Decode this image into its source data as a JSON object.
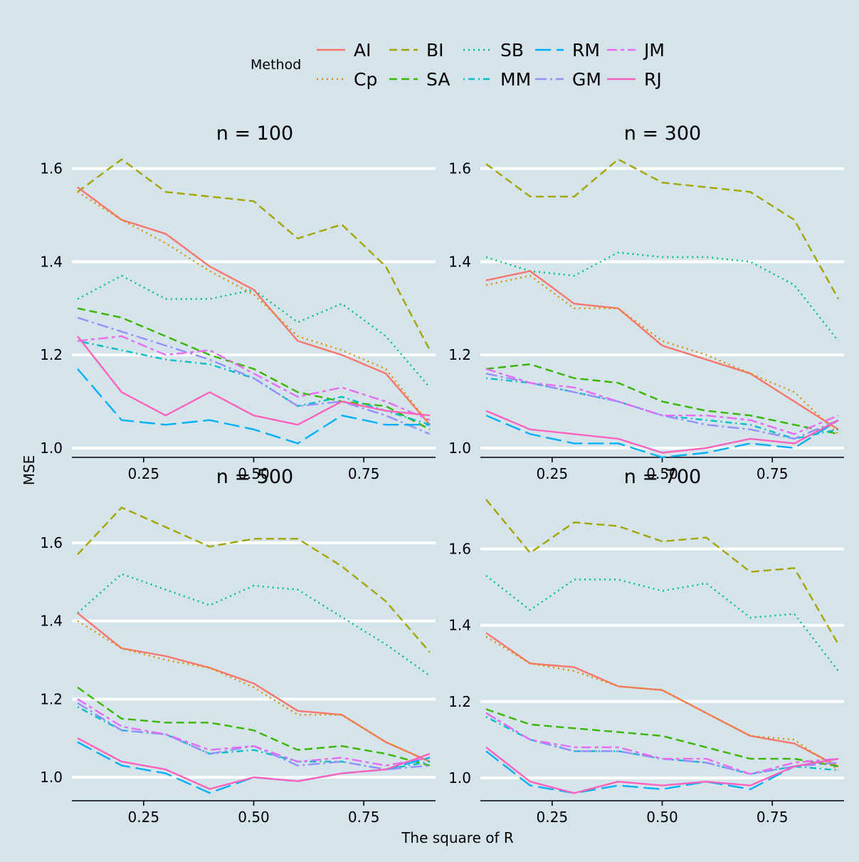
{
  "chart_data": {
    "type": "line",
    "facet_label_prefix": "n = ",
    "xlabel": "The square of R",
    "ylabel": "MSE",
    "legend_title": "Method",
    "legend_position": "top",
    "grid": "horizontal major gridlines only",
    "x": [
      0.1,
      0.2,
      0.3,
      0.4,
      0.5,
      0.6,
      0.7,
      0.8,
      0.9
    ],
    "x_ticks": [
      0.25,
      0.5,
      0.75
    ],
    "x_tick_labels": [
      "0.25",
      "0.50",
      "0.75"
    ],
    "xlim": [
      0.1,
      0.9
    ],
    "legend": [
      {
        "name": "AI",
        "color": "#F8766D",
        "dash": "solid"
      },
      {
        "name": "BI",
        "color": "#A3A500",
        "dash": "dashed"
      },
      {
        "name": "SB",
        "color": "#00BF7D",
        "dash": "dotted"
      },
      {
        "name": "RM",
        "color": "#00B0F6",
        "dash": "longdash"
      },
      {
        "name": "JM",
        "color": "#E76BF3",
        "dash": "twodash"
      },
      {
        "name": "Cp",
        "color": "#D89000",
        "dash": "dotted"
      },
      {
        "name": "SA",
        "color": "#39B600",
        "dash": "dashed"
      },
      {
        "name": "MM",
        "color": "#00BFC4",
        "dash": "dotdash"
      },
      {
        "name": "GM",
        "color": "#9590FF",
        "dash": "dashdot"
      },
      {
        "name": "RJ",
        "color": "#FF62BC",
        "dash": "solid"
      }
    ],
    "panels": [
      {
        "n": "100",
        "y_ticks": [
          1.0,
          1.2,
          1.4,
          1.6
        ],
        "y_tick_labels": [
          "1.0",
          "1.2",
          "1.4",
          "1.6"
        ],
        "series": [
          {
            "name": "AI",
            "values": [
              1.56,
              1.49,
              1.46,
              1.39,
              1.34,
              1.23,
              1.2,
              1.16,
              1.05
            ]
          },
          {
            "name": "Cp",
            "values": [
              1.55,
              1.49,
              1.44,
              1.38,
              1.33,
              1.24,
              1.21,
              1.17,
              1.05
            ]
          },
          {
            "name": "BI",
            "values": [
              1.55,
              1.62,
              1.55,
              1.54,
              1.53,
              1.45,
              1.48,
              1.39,
              1.21
            ]
          },
          {
            "name": "SB",
            "values": [
              1.32,
              1.37,
              1.32,
              1.32,
              1.34,
              1.27,
              1.31,
              1.24,
              1.13
            ]
          },
          {
            "name": "SA",
            "values": [
              1.3,
              1.28,
              1.24,
              1.2,
              1.17,
              1.12,
              1.1,
              1.09,
              1.04
            ]
          },
          {
            "name": "MM",
            "values": [
              1.23,
              1.21,
              1.19,
              1.18,
              1.15,
              1.09,
              1.11,
              1.08,
              1.05
            ]
          },
          {
            "name": "GM",
            "values": [
              1.28,
              1.25,
              1.22,
              1.19,
              1.15,
              1.09,
              1.1,
              1.07,
              1.03
            ]
          },
          {
            "name": "JM",
            "values": [
              1.23,
              1.24,
              1.2,
              1.21,
              1.16,
              1.11,
              1.13,
              1.1,
              1.06
            ]
          },
          {
            "name": "RM",
            "values": [
              1.17,
              1.06,
              1.05,
              1.06,
              1.04,
              1.01,
              1.07,
              1.05,
              1.05
            ]
          },
          {
            "name": "RJ",
            "values": [
              1.24,
              1.12,
              1.07,
              1.12,
              1.07,
              1.05,
              1.1,
              1.08,
              1.07
            ]
          }
        ]
      },
      {
        "n": "300",
        "y_ticks": [
          1.0,
          1.2,
          1.4,
          1.6
        ],
        "y_tick_labels": [
          "1.0",
          "1.2",
          "1.4",
          "1.6"
        ],
        "series": [
          {
            "name": "AI",
            "values": [
              1.36,
              1.38,
              1.31,
              1.3,
              1.22,
              1.19,
              1.16,
              1.1,
              1.04
            ]
          },
          {
            "name": "Cp",
            "values": [
              1.35,
              1.37,
              1.3,
              1.3,
              1.23,
              1.2,
              1.16,
              1.12,
              1.03
            ]
          },
          {
            "name": "BI",
            "values": [
              1.61,
              1.54,
              1.54,
              1.62,
              1.57,
              1.56,
              1.55,
              1.49,
              1.32
            ]
          },
          {
            "name": "SB",
            "values": [
              1.41,
              1.38,
              1.37,
              1.42,
              1.41,
              1.41,
              1.4,
              1.35,
              1.23
            ]
          },
          {
            "name": "SA",
            "values": [
              1.17,
              1.18,
              1.15,
              1.14,
              1.1,
              1.08,
              1.07,
              1.05,
              1.03
            ]
          },
          {
            "name": "MM",
            "values": [
              1.15,
              1.14,
              1.12,
              1.1,
              1.07,
              1.06,
              1.05,
              1.02,
              1.04
            ]
          },
          {
            "name": "GM",
            "values": [
              1.16,
              1.14,
              1.12,
              1.1,
              1.07,
              1.05,
              1.04,
              1.02,
              1.06
            ]
          },
          {
            "name": "JM",
            "values": [
              1.17,
              1.14,
              1.13,
              1.1,
              1.07,
              1.07,
              1.06,
              1.03,
              1.07
            ]
          },
          {
            "name": "RM",
            "values": [
              1.07,
              1.03,
              1.01,
              1.01,
              0.98,
              0.99,
              1.01,
              1.0,
              1.06
            ]
          },
          {
            "name": "RJ",
            "values": [
              1.08,
              1.04,
              1.03,
              1.02,
              0.99,
              1.0,
              1.02,
              1.01,
              1.06
            ]
          }
        ]
      },
      {
        "n": "500",
        "y_ticks": [
          1.0,
          1.2,
          1.4,
          1.6
        ],
        "y_tick_labels": [
          "1.0",
          "1.2",
          "1.4",
          "1.6"
        ],
        "series": [
          {
            "name": "AI",
            "values": [
              1.42,
              1.33,
              1.31,
              1.28,
              1.24,
              1.17,
              1.16,
              1.09,
              1.04
            ]
          },
          {
            "name": "Cp",
            "values": [
              1.4,
              1.33,
              1.3,
              1.28,
              1.23,
              1.16,
              1.16,
              1.09,
              1.04
            ]
          },
          {
            "name": "BI",
            "values": [
              1.57,
              1.69,
              1.64,
              1.59,
              1.61,
              1.61,
              1.54,
              1.45,
              1.32
            ]
          },
          {
            "name": "SB",
            "values": [
              1.42,
              1.52,
              1.48,
              1.44,
              1.49,
              1.48,
              1.41,
              1.34,
              1.26
            ]
          },
          {
            "name": "SA",
            "values": [
              1.23,
              1.15,
              1.14,
              1.14,
              1.12,
              1.07,
              1.08,
              1.06,
              1.03
            ]
          },
          {
            "name": "MM",
            "values": [
              1.18,
              1.12,
              1.11,
              1.06,
              1.07,
              1.04,
              1.04,
              1.02,
              1.04
            ]
          },
          {
            "name": "GM",
            "values": [
              1.19,
              1.12,
              1.11,
              1.06,
              1.08,
              1.03,
              1.04,
              1.02,
              1.03
            ]
          },
          {
            "name": "JM",
            "values": [
              1.2,
              1.13,
              1.11,
              1.07,
              1.08,
              1.04,
              1.05,
              1.03,
              1.05
            ]
          },
          {
            "name": "RM",
            "values": [
              1.09,
              1.03,
              1.01,
              0.96,
              1.0,
              0.99,
              1.01,
              1.02,
              1.05
            ]
          },
          {
            "name": "RJ",
            "values": [
              1.1,
              1.04,
              1.02,
              0.97,
              1.0,
              0.99,
              1.01,
              1.02,
              1.06
            ]
          }
        ]
      },
      {
        "n": "700",
        "y_ticks": [
          1.0,
          1.2,
          1.4,
          1.6
        ],
        "y_tick_labels": [
          "1.0",
          "1.2",
          "1.4",
          "1.6"
        ],
        "series": [
          {
            "name": "AI",
            "values": [
              1.38,
              1.3,
              1.29,
              1.24,
              1.23,
              1.17,
              1.11,
              1.09,
              1.03
            ]
          },
          {
            "name": "Cp",
            "values": [
              1.37,
              1.3,
              1.28,
              1.24,
              1.23,
              1.17,
              1.11,
              1.1,
              1.02
            ]
          },
          {
            "name": "BI",
            "values": [
              1.73,
              1.59,
              1.67,
              1.66,
              1.62,
              1.63,
              1.54,
              1.55,
              1.35
            ]
          },
          {
            "name": "SB",
            "values": [
              1.53,
              1.44,
              1.52,
              1.52,
              1.49,
              1.51,
              1.42,
              1.43,
              1.28
            ]
          },
          {
            "name": "SA",
            "values": [
              1.18,
              1.14,
              1.13,
              1.12,
              1.11,
              1.08,
              1.05,
              1.05,
              1.03
            ]
          },
          {
            "name": "MM",
            "values": [
              1.16,
              1.1,
              1.07,
              1.07,
              1.05,
              1.04,
              1.01,
              1.03,
              1.02
            ]
          },
          {
            "name": "GM",
            "values": [
              1.17,
              1.1,
              1.07,
              1.07,
              1.05,
              1.04,
              1.01,
              1.03,
              1.04
            ]
          },
          {
            "name": "JM",
            "values": [
              1.17,
              1.1,
              1.08,
              1.08,
              1.05,
              1.05,
              1.01,
              1.04,
              1.05
            ]
          },
          {
            "name": "RM",
            "values": [
              1.07,
              0.98,
              0.96,
              0.98,
              0.97,
              0.99,
              0.97,
              1.03,
              1.05
            ]
          },
          {
            "name": "RJ",
            "values": [
              1.08,
              0.99,
              0.96,
              0.99,
              0.98,
              0.99,
              0.98,
              1.03,
              1.05
            ]
          }
        ]
      }
    ]
  }
}
